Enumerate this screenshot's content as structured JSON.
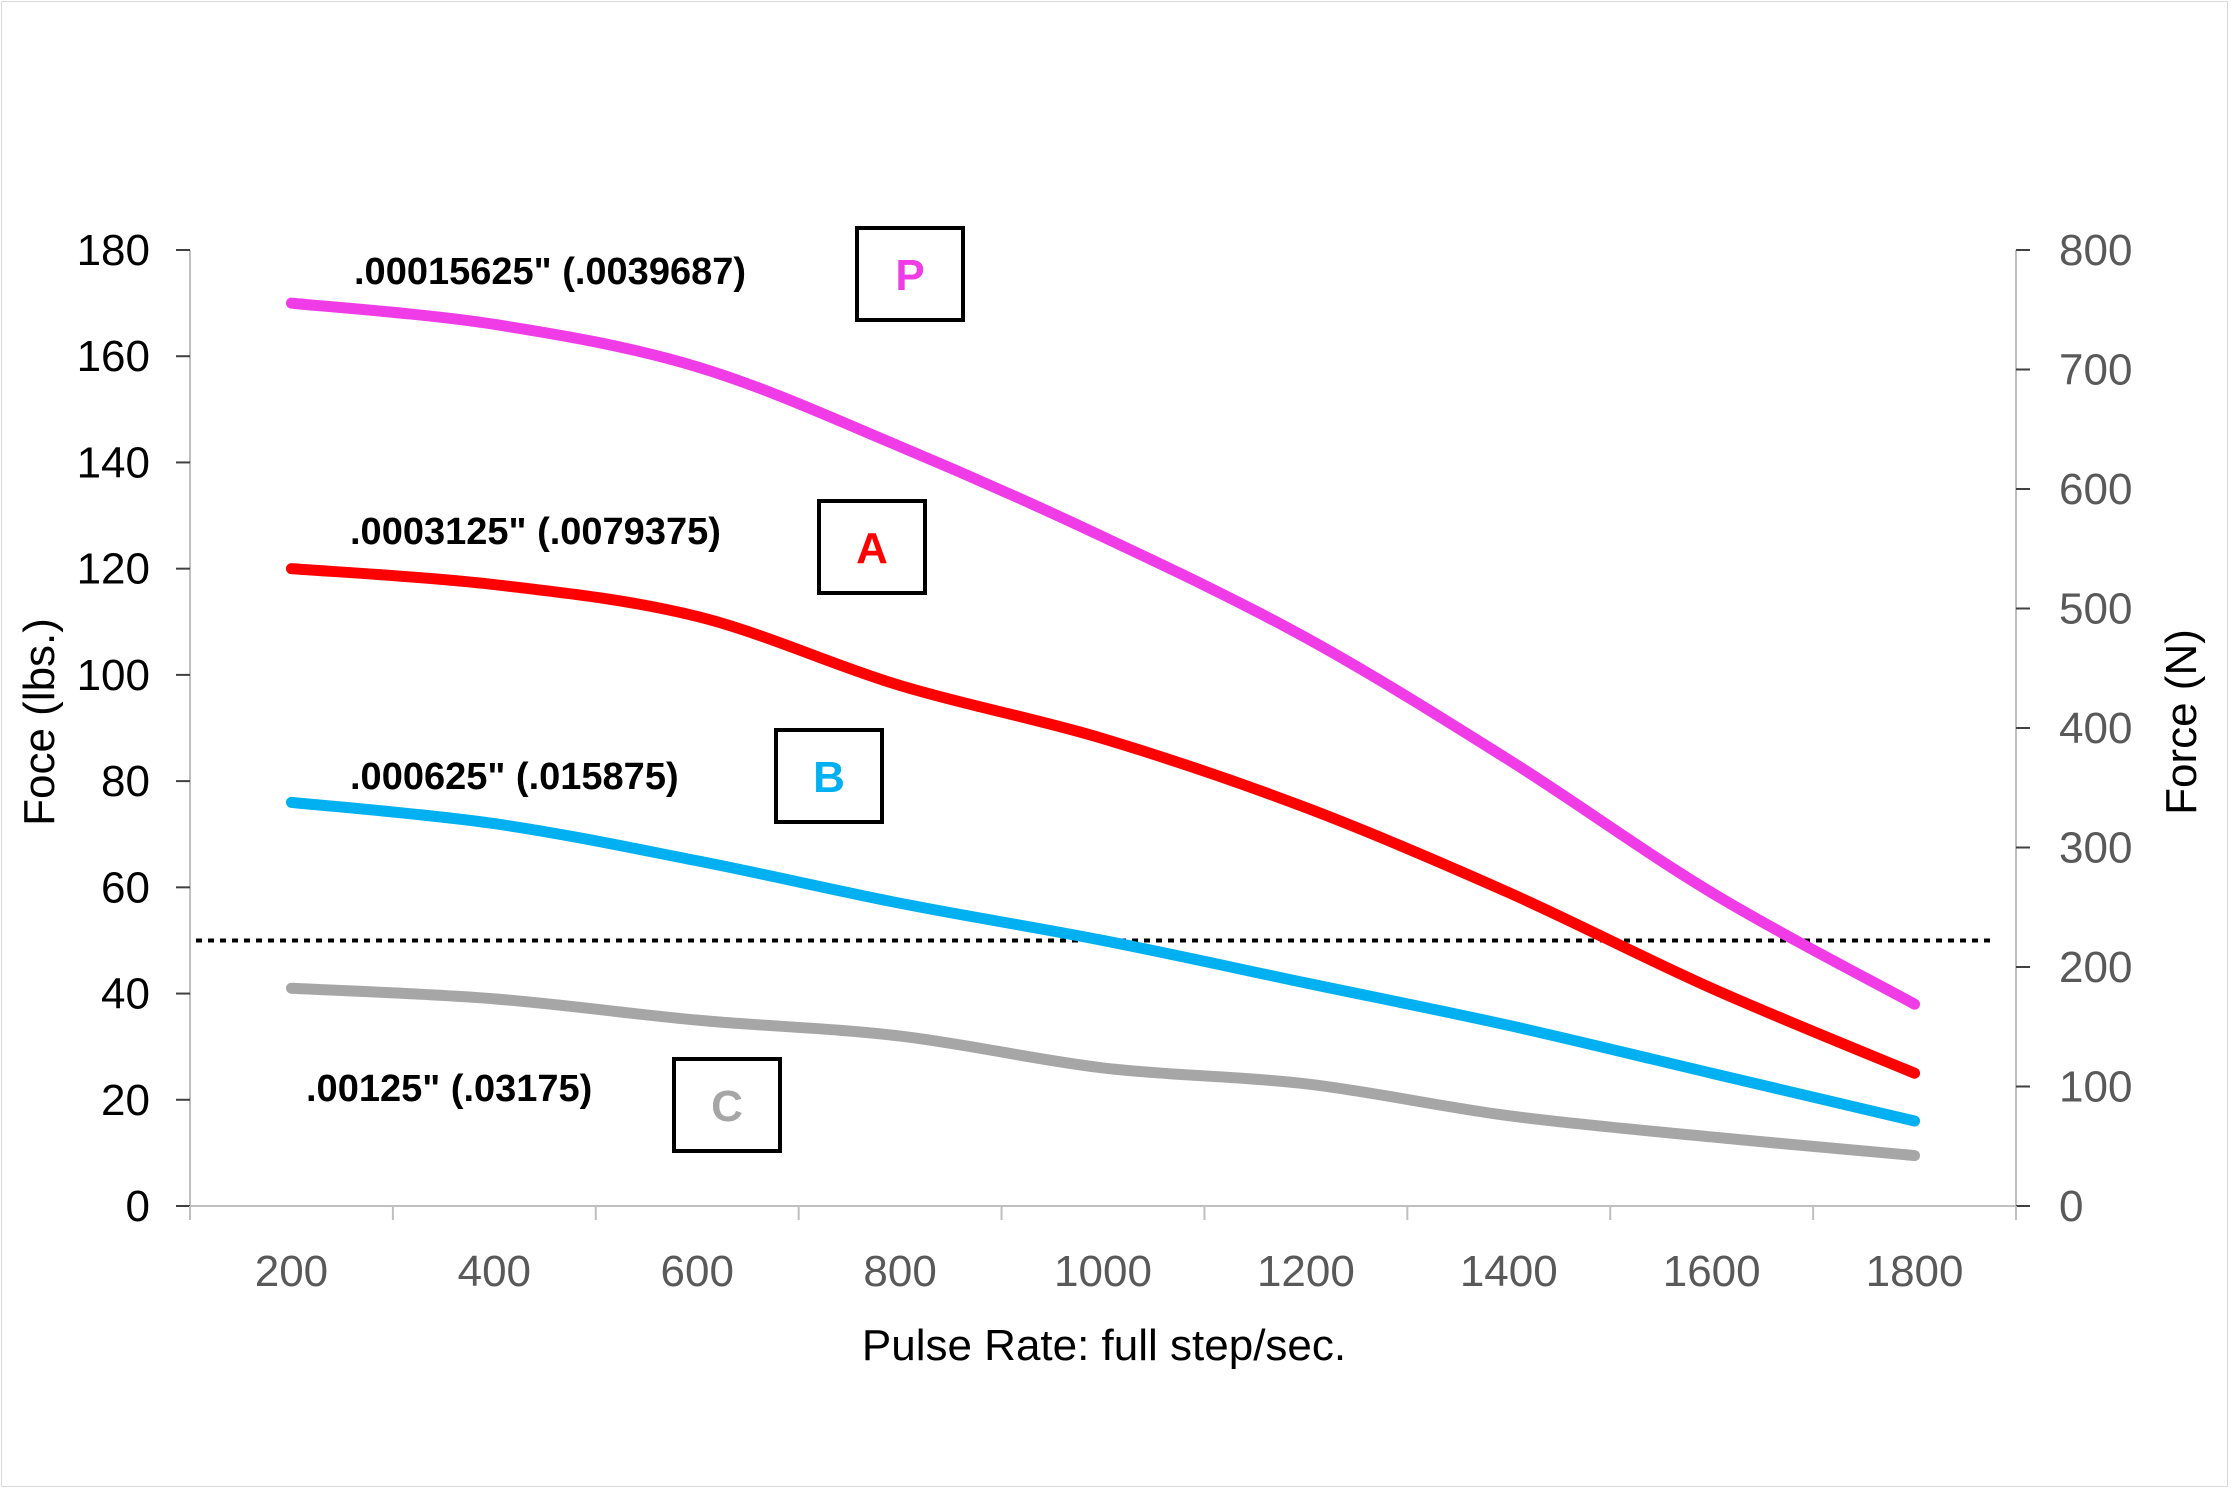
{
  "chart_data": {
    "type": "line",
    "xlabel": "Pulse Rate: full step/sec.",
    "ylabel": "Foce (lbs.)",
    "y2label": "Force (N)",
    "xlim": [
      100,
      1900
    ],
    "ylim": [
      0,
      180
    ],
    "y2lim": [
      0,
      800
    ],
    "x_ticks": [
      200,
      400,
      600,
      800,
      1000,
      1200,
      1400,
      1600,
      1800
    ],
    "y_ticks": [
      0,
      20,
      40,
      60,
      80,
      100,
      120,
      140,
      160,
      180
    ],
    "y2_ticks": [
      0,
      100,
      200,
      300,
      400,
      500,
      600,
      700,
      800
    ],
    "reference_line": {
      "y": 50,
      "style": "dotted",
      "color": "#000000"
    },
    "grid": false,
    "series": [
      {
        "name": "P",
        "label": ".00015625\" (.0039687)",
        "color": "#f03ce6",
        "x": [
          200,
          400,
          600,
          800,
          1000,
          1200,
          1400,
          1600,
          1800
        ],
        "values": [
          170,
          166,
          158,
          143,
          126,
          107,
          84,
          59,
          38
        ]
      },
      {
        "name": "A",
        "label": ".0003125\" (.0079375)",
        "color": "#ff0000",
        "x": [
          200,
          400,
          600,
          800,
          1000,
          1200,
          1400,
          1600,
          1800
        ],
        "values": [
          120,
          117,
          111,
          98,
          88,
          75,
          59,
          41,
          25
        ]
      },
      {
        "name": "B",
        "label": ".000625\" (.015875)",
        "color": "#00b0f0",
        "x": [
          200,
          400,
          600,
          800,
          1000,
          1200,
          1400,
          1600,
          1800
        ],
        "values": [
          76,
          72,
          65,
          57,
          50,
          42,
          34,
          25,
          16
        ]
      },
      {
        "name": "C",
        "label": ".00125\" (.03175)",
        "color": "#a6a6a6",
        "x": [
          200,
          400,
          600,
          800,
          1000,
          1200,
          1400,
          1600,
          1800
        ],
        "values": [
          41,
          39,
          35,
          32,
          26,
          23,
          17,
          13,
          9.5
        ]
      }
    ]
  }
}
